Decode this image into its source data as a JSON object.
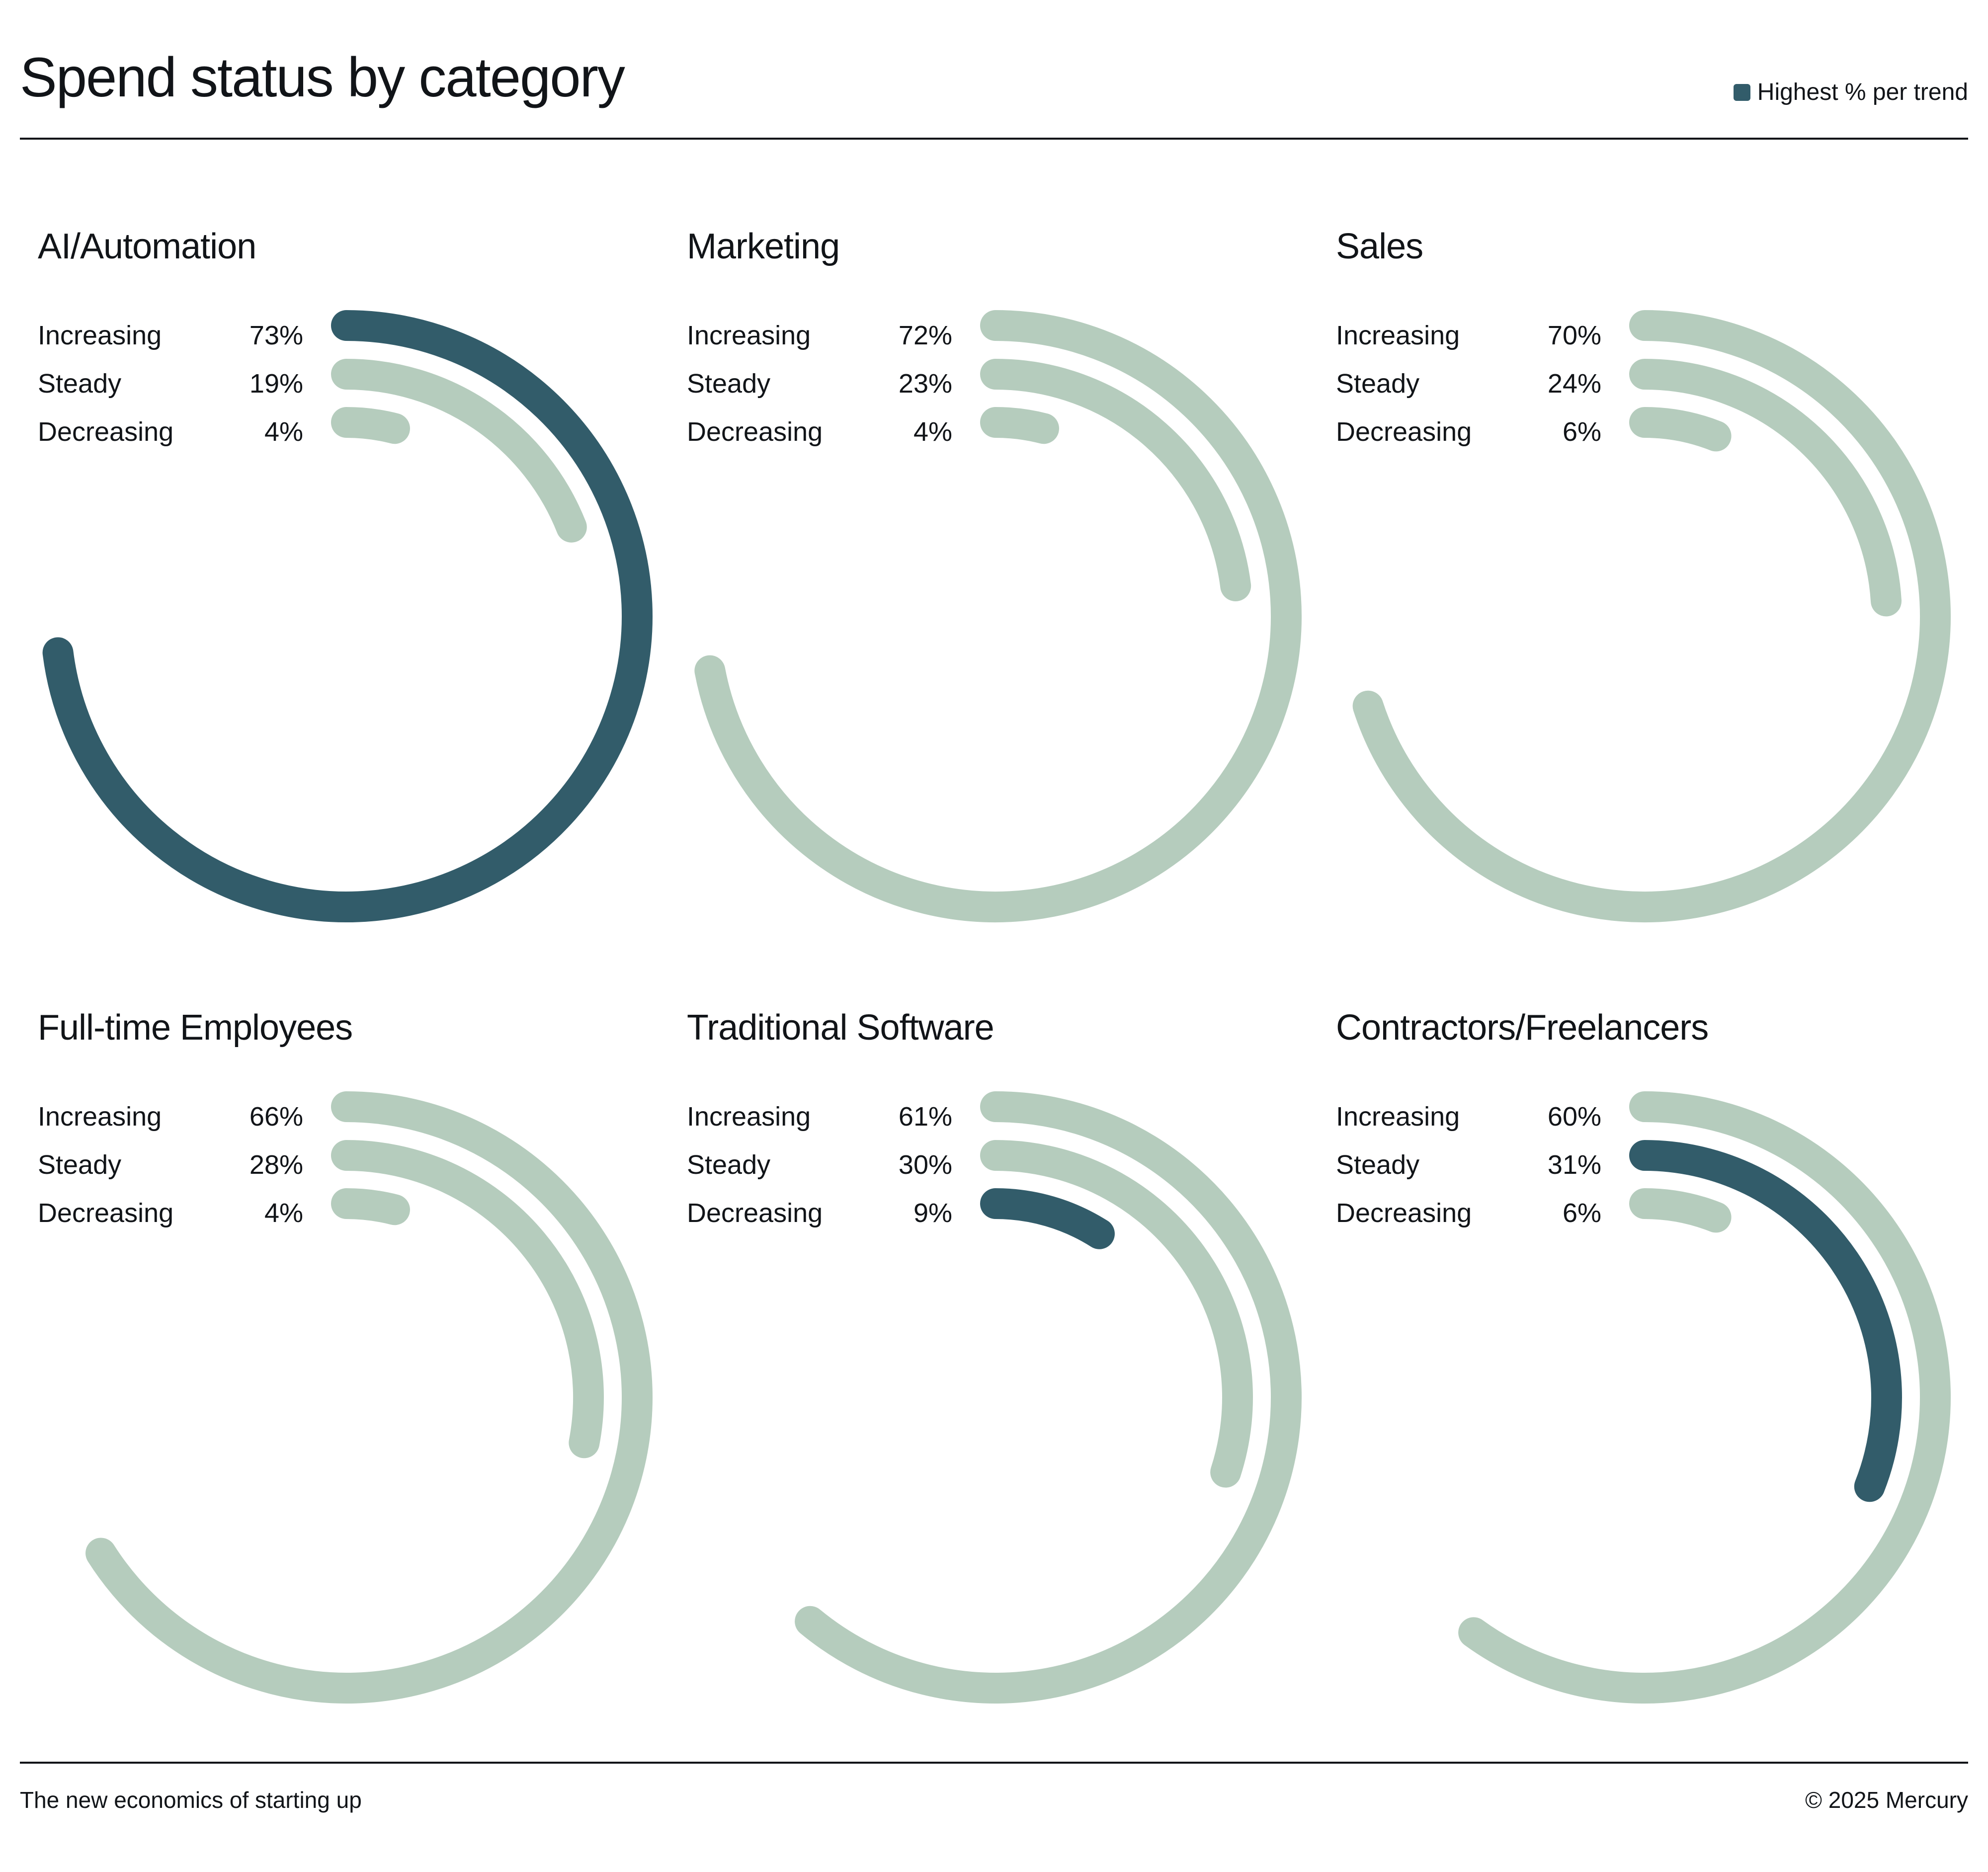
{
  "header": {
    "title": "Spend status by category",
    "legend_label": "Highest % per trend"
  },
  "footer": {
    "left": "The new economics of starting up",
    "right": "© 2025 Mercury"
  },
  "colors": {
    "highlight": "#325c6a",
    "base": "#b5ccbd",
    "text": "#111418"
  },
  "chart_data": {
    "type": "radial-bar",
    "title": "Spend status by category",
    "legend": [
      "Highest % per trend"
    ],
    "trends": [
      "Increasing",
      "Steady",
      "Decreasing"
    ],
    "panels": [
      {
        "category": "AI/Automation",
        "rows": [
          {
            "label": "Increasing",
            "value": 73,
            "display": "73%",
            "highlight": true
          },
          {
            "label": "Steady",
            "value": 19,
            "display": "19%",
            "highlight": false
          },
          {
            "label": "Decreasing",
            "value": 4,
            "display": "4%",
            "highlight": false
          }
        ]
      },
      {
        "category": "Marketing",
        "rows": [
          {
            "label": "Increasing",
            "value": 72,
            "display": "72%",
            "highlight": false
          },
          {
            "label": "Steady",
            "value": 23,
            "display": "23%",
            "highlight": false
          },
          {
            "label": "Decreasing",
            "value": 4,
            "display": "4%",
            "highlight": false
          }
        ]
      },
      {
        "category": "Sales",
        "rows": [
          {
            "label": "Increasing",
            "value": 70,
            "display": "70%",
            "highlight": false
          },
          {
            "label": "Steady",
            "value": 24,
            "display": "24%",
            "highlight": false
          },
          {
            "label": "Decreasing",
            "value": 6,
            "display": "6%",
            "highlight": false
          }
        ]
      },
      {
        "category": "Full-time Employees",
        "rows": [
          {
            "label": "Increasing",
            "value": 66,
            "display": "66%",
            "highlight": false
          },
          {
            "label": "Steady",
            "value": 28,
            "display": "28%",
            "highlight": false
          },
          {
            "label": "Decreasing",
            "value": 4,
            "display": "4%",
            "highlight": false
          }
        ]
      },
      {
        "category": "Traditional Software",
        "rows": [
          {
            "label": "Increasing",
            "value": 61,
            "display": "61%",
            "highlight": false
          },
          {
            "label": "Steady",
            "value": 30,
            "display": "30%",
            "highlight": false
          },
          {
            "label": "Decreasing",
            "value": 9,
            "display": "9%",
            "highlight": true
          }
        ]
      },
      {
        "category": "Contractors/Freelancers",
        "rows": [
          {
            "label": "Increasing",
            "value": 60,
            "display": "60%",
            "highlight": false
          },
          {
            "label": "Steady",
            "value": 31,
            "display": "31%",
            "highlight": true
          },
          {
            "label": "Decreasing",
            "value": 6,
            "display": "6%",
            "highlight": false
          }
        ]
      }
    ]
  }
}
